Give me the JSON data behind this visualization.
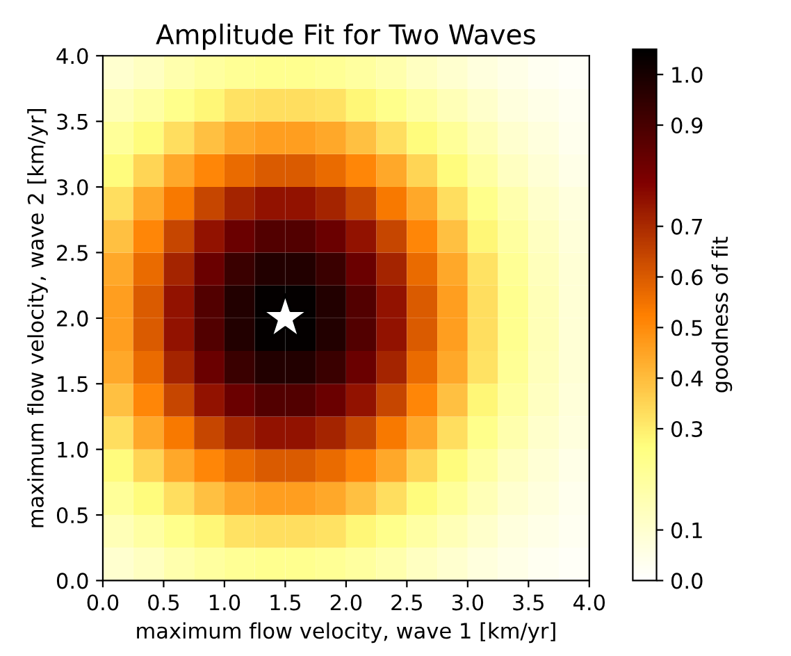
{
  "chart_data": {
    "type": "heatmap",
    "title": "Amplitude Fit for Two Waves",
    "xlabel": "maximum flow velocity, wave 1 [km/yr]",
    "ylabel": "maximum flow velocity, wave 2 [km/yr]",
    "clabel": "goodness of fit",
    "x": [
      0.125,
      0.375,
      0.625,
      0.875,
      1.125,
      1.375,
      1.625,
      1.875,
      2.125,
      2.375,
      2.625,
      2.875,
      3.125,
      3.375,
      3.625,
      3.875
    ],
    "y": [
      3.875,
      3.625,
      3.375,
      3.125,
      2.875,
      2.625,
      2.375,
      2.125,
      1.875,
      1.625,
      1.375,
      1.125,
      0.875,
      0.625,
      0.375,
      0.125
    ],
    "cells": [
      [
        0.1,
        0.13,
        0.17,
        0.2,
        0.22,
        0.23,
        0.23,
        0.22,
        0.2,
        0.17,
        0.13,
        0.1,
        0.07,
        0.05,
        0.03,
        0.02
      ],
      [
        0.15,
        0.19,
        0.24,
        0.28,
        0.32,
        0.33,
        0.33,
        0.32,
        0.28,
        0.24,
        0.19,
        0.15,
        0.11,
        0.07,
        0.05,
        0.03
      ],
      [
        0.21,
        0.27,
        0.33,
        0.39,
        0.44,
        0.46,
        0.46,
        0.44,
        0.39,
        0.33,
        0.27,
        0.21,
        0.15,
        0.1,
        0.07,
        0.04
      ],
      [
        0.27,
        0.35,
        0.44,
        0.51,
        0.57,
        0.6,
        0.6,
        0.57,
        0.51,
        0.44,
        0.35,
        0.27,
        0.19,
        0.13,
        0.09,
        0.05
      ],
      [
        0.33,
        0.44,
        0.54,
        0.64,
        0.71,
        0.75,
        0.75,
        0.71,
        0.64,
        0.54,
        0.44,
        0.33,
        0.24,
        0.17,
        0.11,
        0.07
      ],
      [
        0.39,
        0.51,
        0.64,
        0.75,
        0.83,
        0.88,
        0.88,
        0.83,
        0.75,
        0.64,
        0.51,
        0.39,
        0.28,
        0.2,
        0.13,
        0.08
      ],
      [
        0.44,
        0.57,
        0.71,
        0.83,
        0.93,
        0.98,
        0.98,
        0.93,
        0.83,
        0.71,
        0.57,
        0.44,
        0.32,
        0.22,
        0.14,
        0.09
      ],
      [
        0.46,
        0.6,
        0.75,
        0.88,
        0.98,
        1.04,
        1.04,
        0.98,
        0.88,
        0.75,
        0.6,
        0.46,
        0.33,
        0.23,
        0.15,
        0.09
      ],
      [
        0.46,
        0.6,
        0.75,
        0.88,
        0.98,
        1.04,
        1.04,
        0.98,
        0.88,
        0.75,
        0.6,
        0.46,
        0.33,
        0.23,
        0.15,
        0.09
      ],
      [
        0.44,
        0.57,
        0.71,
        0.83,
        0.93,
        0.98,
        0.98,
        0.93,
        0.83,
        0.71,
        0.57,
        0.44,
        0.32,
        0.22,
        0.14,
        0.09
      ],
      [
        0.39,
        0.51,
        0.64,
        0.75,
        0.83,
        0.88,
        0.88,
        0.83,
        0.75,
        0.64,
        0.51,
        0.39,
        0.28,
        0.2,
        0.13,
        0.08
      ],
      [
        0.33,
        0.44,
        0.54,
        0.64,
        0.71,
        0.75,
        0.75,
        0.71,
        0.64,
        0.54,
        0.44,
        0.33,
        0.24,
        0.17,
        0.11,
        0.07
      ],
      [
        0.27,
        0.35,
        0.44,
        0.51,
        0.57,
        0.6,
        0.6,
        0.57,
        0.51,
        0.44,
        0.35,
        0.27,
        0.19,
        0.13,
        0.09,
        0.05
      ],
      [
        0.21,
        0.27,
        0.33,
        0.39,
        0.44,
        0.46,
        0.46,
        0.44,
        0.39,
        0.33,
        0.27,
        0.21,
        0.15,
        0.1,
        0.07,
        0.04
      ],
      [
        0.15,
        0.19,
        0.24,
        0.28,
        0.32,
        0.33,
        0.33,
        0.32,
        0.28,
        0.24,
        0.19,
        0.15,
        0.11,
        0.07,
        0.05,
        0.03
      ],
      [
        0.1,
        0.13,
        0.17,
        0.2,
        0.22,
        0.23,
        0.23,
        0.22,
        0.2,
        0.17,
        0.13,
        0.1,
        0.07,
        0.05,
        0.03,
        0.02
      ]
    ],
    "series": [
      {
        "type": "scatter",
        "x": [
          1.5
        ],
        "values": [
          2.0
        ],
        "color": "#ffffff",
        "marker": "star"
      }
    ],
    "xlim": [
      0.0,
      4.0
    ],
    "ylim": [
      0.0,
      4.0
    ],
    "xticks": [
      {
        "value": 0,
        "label": "0.0"
      },
      {
        "value": 0.5,
        "label": "0.5"
      },
      {
        "value": 1,
        "label": "1.0"
      },
      {
        "value": 1.5,
        "label": "1.5"
      },
      {
        "value": 2,
        "label": "2.0"
      },
      {
        "value": 2.5,
        "label": "2.5"
      },
      {
        "value": 3,
        "label": "3.0"
      },
      {
        "value": 3.5,
        "label": "3.5"
      },
      {
        "value": 4,
        "label": "4.0"
      }
    ],
    "yticks": [
      {
        "value": 0,
        "label": "0.0"
      },
      {
        "value": 0.5,
        "label": "0.5"
      },
      {
        "value": 1,
        "label": "1.0"
      },
      {
        "value": 1.5,
        "label": "1.5"
      },
      {
        "value": 2,
        "label": "2.0"
      },
      {
        "value": 2.5,
        "label": "2.5"
      },
      {
        "value": 3,
        "label": "3.0"
      },
      {
        "value": 3.5,
        "label": "3.5"
      },
      {
        "value": 4,
        "label": "4.0"
      }
    ],
    "clim": [
      0.0,
      1.05
    ],
    "cticks": [
      {
        "value": 0,
        "label": "0.0"
      },
      {
        "value": 0.1,
        "label": "0.1"
      },
      {
        "value": 0.3,
        "label": "0.3"
      },
      {
        "value": 0.4,
        "label": "0.4"
      },
      {
        "value": 0.5,
        "label": "0.5"
      },
      {
        "value": 0.6,
        "label": "0.6"
      },
      {
        "value": 0.7,
        "label": "0.7"
      },
      {
        "value": 0.9,
        "label": "0.9"
      },
      {
        "value": 1.0,
        "label": "1.0"
      }
    ]
  }
}
